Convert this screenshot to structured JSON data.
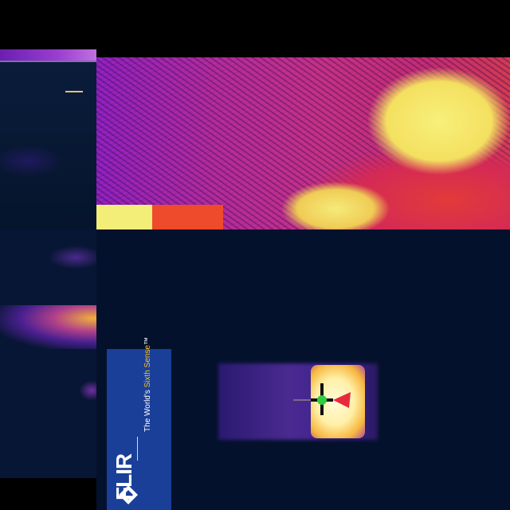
{
  "banner": {
    "logo_text": "FLIR",
    "tagline_prefix": "The World's ",
    "tagline_accent": "Sixth Sense",
    "tagline_suffix": "™"
  },
  "colors": {
    "banner_bg": "#1a3f99",
    "hot_white": "#fffbd8",
    "thermal_yellow": "#f2ee78",
    "thermal_orange": "#ee4a2c",
    "thermal_magenta": "#b02a9a",
    "cold_navy": "#04112c",
    "crosshair_green": "#2ecc40",
    "crosshair_red": "#e8283c"
  },
  "icons": {
    "logo_mark": "flir-diamond-icon",
    "target": "crosshair-icon"
  }
}
